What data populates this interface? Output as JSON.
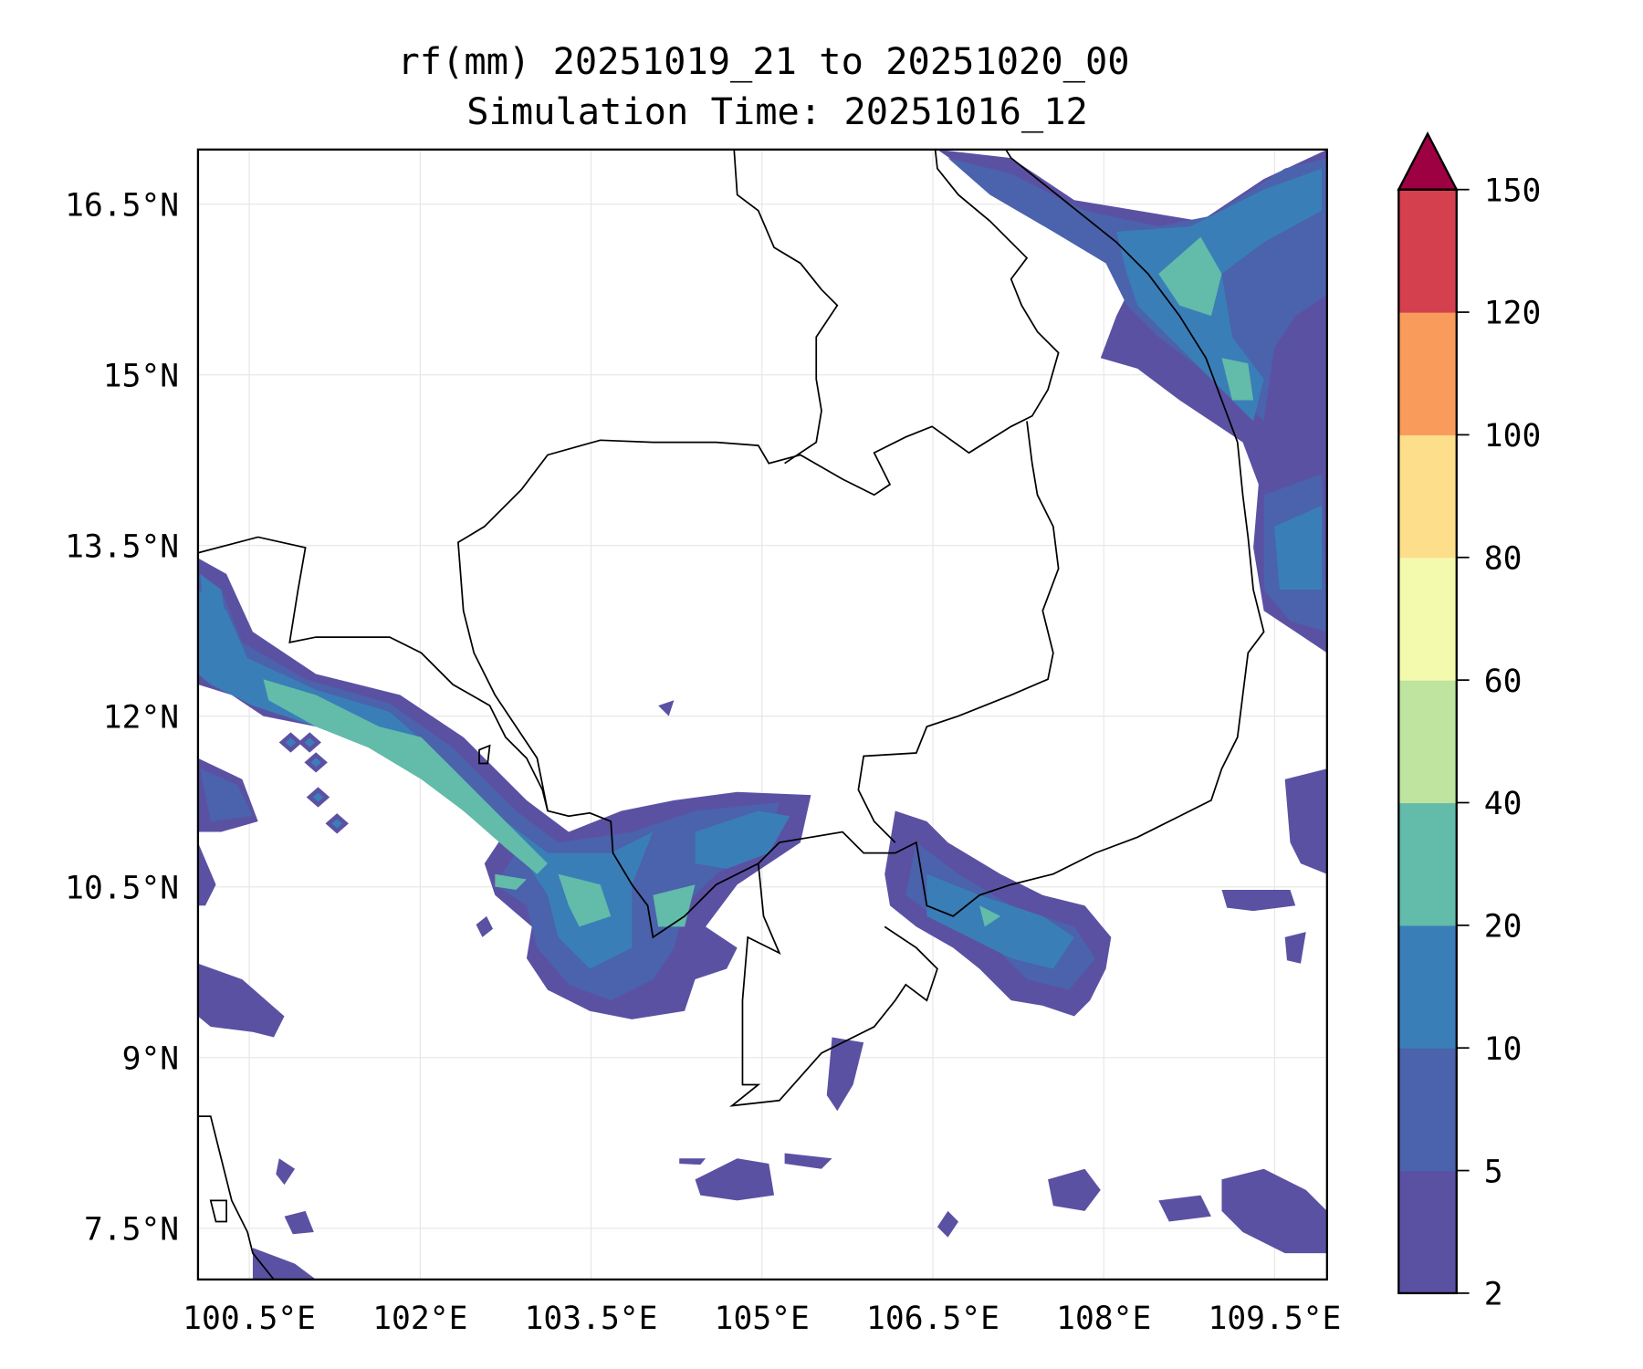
{
  "chart_data": {
    "type": "heatmap",
    "subtype": "filled-contour-map",
    "title": "rf(mm) 20251019_21 to 20251020_00",
    "subtitle": "Simulation Time: 20251016_12",
    "x_ticks": [
      {
        "value": 100.5,
        "label": "100.5°E"
      },
      {
        "value": 102.0,
        "label": "102°E"
      },
      {
        "value": 103.5,
        "label": "103.5°E"
      },
      {
        "value": 105.0,
        "label": "105°E"
      },
      {
        "value": 106.5,
        "label": "106.5°E"
      },
      {
        "value": 108.0,
        "label": "108°E"
      },
      {
        "value": 109.5,
        "label": "109.5°E"
      }
    ],
    "y_ticks": [
      {
        "value": 16.5,
        "label": "16.5°N"
      },
      {
        "value": 15.0,
        "label": "15°N"
      },
      {
        "value": 13.5,
        "label": "13.5°N"
      },
      {
        "value": 12.0,
        "label": "12°N"
      },
      {
        "value": 10.5,
        "label": "10.5°N"
      },
      {
        "value": 9.0,
        "label": "9°N"
      },
      {
        "value": 7.5,
        "label": "7.5°N"
      }
    ],
    "xlim": [
      100.05,
      109.96
    ],
    "ylim": [
      7.05,
      16.98
    ],
    "grid": true,
    "colorbar": {
      "levels": [
        2,
        5,
        10,
        20,
        40,
        60,
        80,
        100,
        120,
        150
      ],
      "labels": [
        "2",
        "5",
        "10",
        "20",
        "40",
        "60",
        "80",
        "100",
        "120",
        "150"
      ],
      "colors": [
        "#5b51a3",
        "#4b62ac",
        "#3a7eb8",
        "#63bba9",
        "#bee4a0",
        "#f4faad",
        "#fcde8b",
        "#f99c5b",
        "#d4404e"
      ],
      "extend_max_color": "#9e0142",
      "position": "right"
    }
  }
}
